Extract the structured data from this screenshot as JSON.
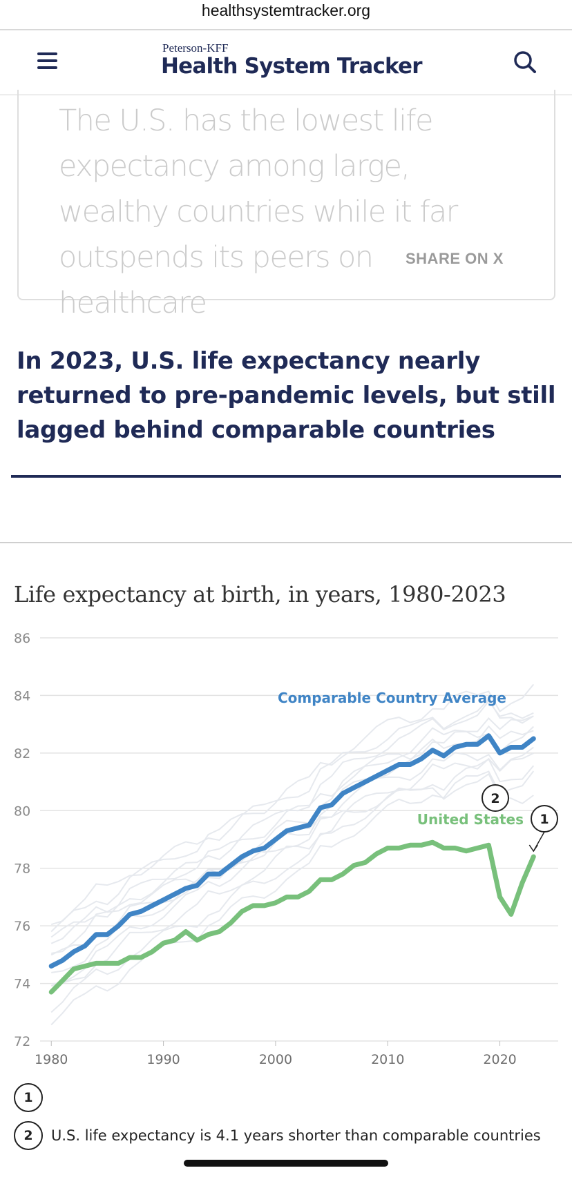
{
  "browser": {
    "url": "healthsystemtracker.org"
  },
  "header": {
    "logo_small": "Peterson-KFF",
    "logo_big": "Health System Tracker",
    "menu_icon": "hamburger-menu-icon",
    "search_icon": "search-icon"
  },
  "quote": {
    "text": "The U.S. has the lowest life expectancy among large, wealthy countries while it far outspends its peers on healthcare",
    "share_label": "SHARE ON X"
  },
  "section": {
    "heading": "In 2023, U.S. life expectancy nearly returned to pre-pandemic levels, but still lagged behind comparable countries"
  },
  "chart_data": {
    "type": "line",
    "title": "Life expectancy at birth, in years, 1980-2023",
    "xlabel": "",
    "ylabel": "",
    "xlim": [
      1980,
      2023
    ],
    "ylim": [
      72,
      86
    ],
    "x_ticks": [
      1980,
      1990,
      2000,
      2010,
      2020
    ],
    "y_ticks": [
      72,
      74,
      76,
      78,
      80,
      82,
      84,
      86
    ],
    "grid": true,
    "x": [
      1980,
      1981,
      1982,
      1983,
      1984,
      1985,
      1986,
      1987,
      1988,
      1989,
      1990,
      1991,
      1992,
      1993,
      1994,
      1995,
      1996,
      1997,
      1998,
      1999,
      2000,
      2001,
      2002,
      2003,
      2004,
      2005,
      2006,
      2007,
      2008,
      2009,
      2010,
      2011,
      2012,
      2013,
      2014,
      2015,
      2016,
      2017,
      2018,
      2019,
      2020,
      2021,
      2022,
      2023
    ],
    "series": [
      {
        "name": "Comparable Country Average",
        "color": "#3f84c5",
        "values": [
          74.6,
          74.8,
          75.1,
          75.3,
          75.7,
          75.7,
          76.0,
          76.4,
          76.5,
          76.7,
          76.9,
          77.1,
          77.3,
          77.4,
          77.8,
          77.8,
          78.1,
          78.4,
          78.6,
          78.7,
          79.0,
          79.3,
          79.4,
          79.5,
          80.1,
          80.2,
          80.6,
          80.8,
          81.0,
          81.2,
          81.4,
          81.6,
          81.6,
          81.8,
          82.1,
          81.9,
          82.2,
          82.3,
          82.3,
          82.6,
          82.0,
          82.2,
          82.2,
          82.5
        ]
      },
      {
        "name": "United States",
        "color": "#78c07b",
        "values": [
          73.7,
          74.1,
          74.5,
          74.6,
          74.7,
          74.7,
          74.7,
          74.9,
          74.9,
          75.1,
          75.4,
          75.5,
          75.8,
          75.5,
          75.7,
          75.8,
          76.1,
          76.5,
          76.7,
          76.7,
          76.8,
          77.0,
          77.0,
          77.2,
          77.6,
          77.6,
          77.8,
          78.1,
          78.2,
          78.5,
          78.7,
          78.7,
          78.8,
          78.8,
          78.9,
          78.7,
          78.7,
          78.6,
          78.7,
          78.8,
          77.0,
          76.4,
          77.5,
          78.4
        ]
      }
    ],
    "background_country_color": "#e6e9ee",
    "annotations": [
      {
        "marker": "1",
        "x": 2023,
        "y": 78.4
      },
      {
        "marker": "2",
        "x": 2019,
        "y": 80.5
      }
    ]
  },
  "notes": [
    {
      "marker": "1",
      "text": ""
    },
    {
      "marker": "2",
      "text": "U.S. life expectancy is 4.1 years shorter than comparable countries"
    }
  ]
}
